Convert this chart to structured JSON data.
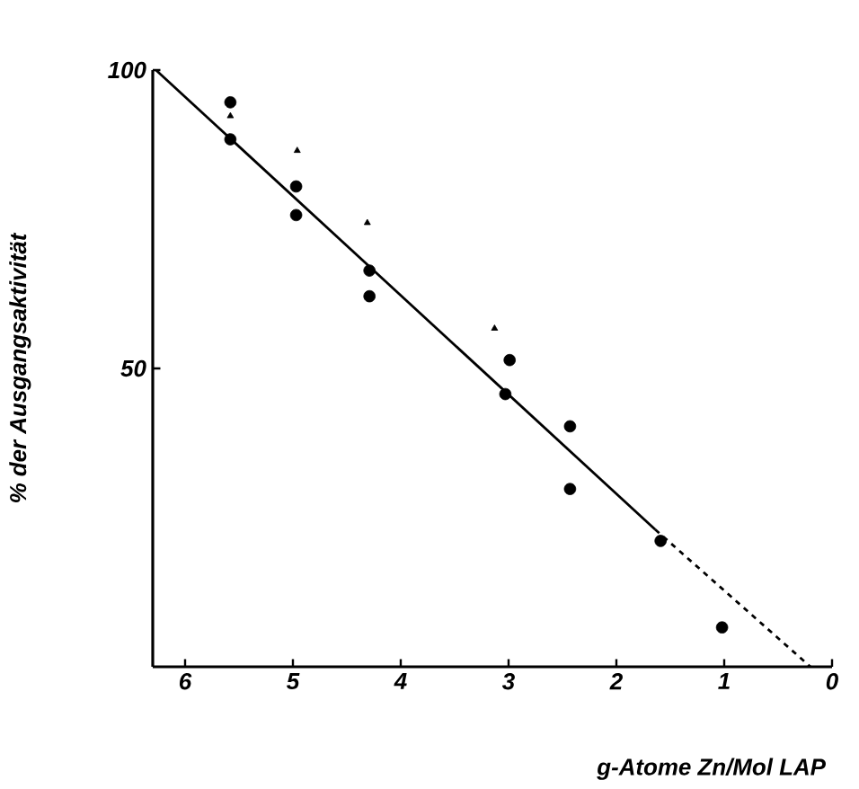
{
  "chart_data": {
    "type": "scatter",
    "xlabel": "g-Atome Zn/Mol LAP",
    "ylabel": "% der Ausgangsaktivität",
    "xlim": [
      6.3,
      0
    ],
    "ylim": [
      0,
      100
    ],
    "xticks": [
      6,
      5,
      4,
      3,
      2,
      1,
      0
    ],
    "yticks": [
      50,
      100
    ],
    "grid": false,
    "series": [
      {
        "marker": "circle",
        "color": "#000000",
        "x": [
          5.58,
          5.58,
          4.97,
          4.97,
          4.29,
          4.29,
          2.99,
          3.03,
          2.43,
          2.43,
          1.59,
          1.02
        ],
        "values": [
          94.6,
          88.4,
          80.5,
          75.7,
          66.4,
          62.1,
          51.4,
          45.7,
          40.3,
          29.8,
          21.1,
          6.6
        ]
      },
      {
        "marker": "triangle",
        "color": "#000000",
        "x": [
          5.58,
          4.96,
          4.31,
          3.13
        ],
        "values": [
          92.3,
          86.5,
          74.4,
          56.7
        ]
      },
      {
        "type": "line",
        "line_style": "solid",
        "marker": "none",
        "color": "#000000",
        "x": [
          6.27,
          1.64
        ],
        "values": [
          100,
          23
        ]
      },
      {
        "type": "line",
        "line_style": "dashed",
        "marker": "none",
        "color": "#000000",
        "x": [
          1.64,
          0.2
        ],
        "values": [
          23,
          0
        ]
      }
    ]
  }
}
